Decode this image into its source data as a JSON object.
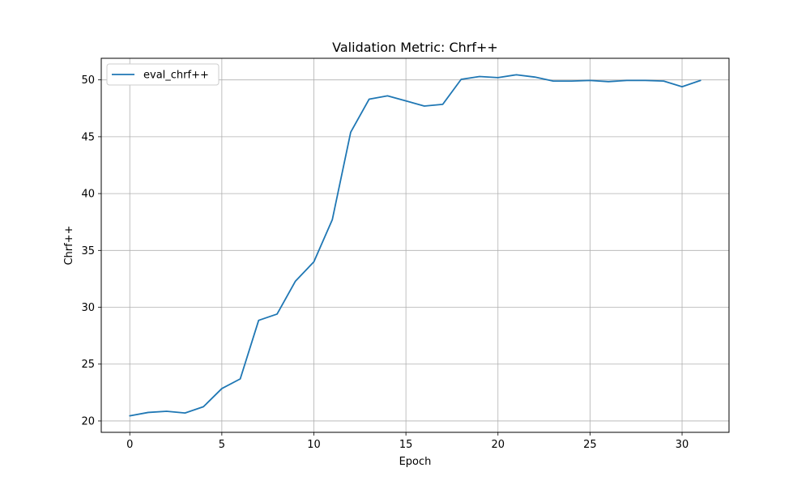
{
  "chart_data": {
    "type": "line",
    "title": "Validation Metric: Chrf++",
    "xlabel": "Epoch",
    "ylabel": "Chrf++",
    "xlim": [
      -1.55,
      32.55
    ],
    "ylim": [
      19.0,
      51.9
    ],
    "xticks": [
      0,
      5,
      10,
      15,
      20,
      25,
      30
    ],
    "yticks": [
      20,
      25,
      30,
      35,
      40,
      45,
      50
    ],
    "grid": true,
    "legend_position": "upper-left",
    "series": [
      {
        "name": "eval_chrf++",
        "color": "#1f77b4",
        "x": [
          0,
          1,
          2,
          3,
          4,
          5,
          6,
          7,
          8,
          9,
          10,
          11,
          12,
          13,
          14,
          15,
          16,
          17,
          18,
          19,
          20,
          21,
          22,
          23,
          24,
          25,
          26,
          27,
          28,
          29,
          30,
          31
        ],
        "y": [
          20.45,
          20.75,
          20.85,
          20.7,
          21.25,
          22.85,
          23.7,
          28.85,
          29.4,
          32.3,
          34.0,
          37.7,
          45.4,
          48.3,
          48.6,
          48.15,
          47.7,
          47.85,
          50.05,
          50.3,
          50.2,
          50.45,
          50.25,
          49.9,
          49.9,
          49.95,
          49.85,
          49.95,
          49.95,
          49.9,
          49.4,
          49.95
        ]
      }
    ]
  }
}
